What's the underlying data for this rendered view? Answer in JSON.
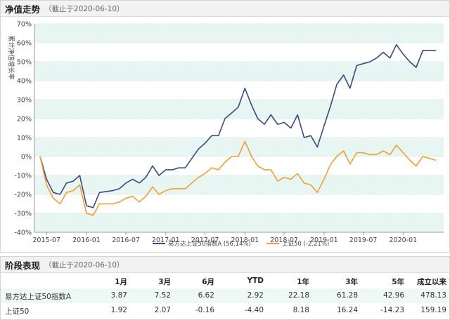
{
  "chart_section": {
    "title": "净值走势",
    "subtitle": "（截止于2020-06-10）"
  },
  "chart_data": {
    "type": "line",
    "ylabel": "累计净值增长率",
    "ylim": [
      -40,
      70
    ],
    "y_ticks": [
      "-40%",
      "-30%",
      "-20%",
      "-10%",
      "0%",
      "10%",
      "20%",
      "30%",
      "40%",
      "50%",
      "60%",
      "70%"
    ],
    "x_ticks": [
      "2015-07",
      "2016-01",
      "2016-07",
      "2017-01",
      "2017-07",
      "2018-01",
      "2018-07",
      "2019-01",
      "2019-07",
      "2020-01"
    ],
    "grid": true,
    "legend_position": "bottom-center",
    "series": [
      {
        "name": "易方达上证50指数A",
        "legend_label": "易方达上证50指数A (56.14%)",
        "color": "#3b4a80",
        "x": [
          "2015-06-01",
          "2015-07-01",
          "2015-08-01",
          "2015-09-01",
          "2015-10-01",
          "2015-11-01",
          "2015-12-01",
          "2016-01-01",
          "2016-02-01",
          "2016-03-01",
          "2016-05-01",
          "2016-06-01",
          "2016-07-01",
          "2016-08-01",
          "2016-09-01",
          "2016-10-01",
          "2016-11-01",
          "2016-12-01",
          "2017-01-01",
          "2017-02-01",
          "2017-03-01",
          "2017-04-01",
          "2017-05-01",
          "2017-06-01",
          "2017-07-01",
          "2017-08-01",
          "2017-09-01",
          "2017-10-01",
          "2017-11-01",
          "2017-12-01",
          "2018-01-01",
          "2018-02-01",
          "2018-03-01",
          "2018-04-01",
          "2018-05-01",
          "2018-06-01",
          "2018-07-01",
          "2018-08-01",
          "2018-09-01",
          "2018-10-01",
          "2018-11-01",
          "2018-12-01",
          "2019-01-01",
          "2019-02-01",
          "2019-03-01",
          "2019-04-01",
          "2019-05-01",
          "2019-06-01",
          "2019-07-01",
          "2019-08-01",
          "2019-09-01",
          "2019-10-01",
          "2019-11-01",
          "2019-12-01",
          "2020-01-01",
          "2020-02-01",
          "2020-03-01",
          "2020-04-01",
          "2020-05-01",
          "2020-06-01"
        ],
        "values": [
          0,
          -12,
          -19,
          -20,
          -14,
          -13,
          -10,
          -26,
          -27,
          -19,
          -18,
          -17,
          -14,
          -12,
          -14,
          -11,
          -5,
          -10,
          -7,
          -7,
          -6,
          -6,
          -1,
          4,
          7,
          11,
          11,
          20,
          23,
          26,
          36,
          27,
          20,
          17,
          22,
          17,
          18,
          15,
          22,
          10,
          11,
          5,
          16,
          27,
          38,
          43,
          36,
          48,
          49,
          50,
          52,
          55,
          52,
          59,
          54,
          50,
          47,
          56,
          56,
          56
        ]
      },
      {
        "name": "上证50",
        "legend_label": "上证50 (-2.21%)",
        "color": "#f0a030",
        "x": [
          "2015-06-01",
          "2015-07-01",
          "2015-08-01",
          "2015-09-01",
          "2015-10-01",
          "2015-11-01",
          "2015-12-01",
          "2016-01-01",
          "2016-02-01",
          "2016-03-01",
          "2016-05-01",
          "2016-06-01",
          "2016-07-01",
          "2016-08-01",
          "2016-09-01",
          "2016-10-01",
          "2016-11-01",
          "2016-12-01",
          "2017-01-01",
          "2017-02-01",
          "2017-03-01",
          "2017-04-01",
          "2017-05-01",
          "2017-06-01",
          "2017-07-01",
          "2017-08-01",
          "2017-09-01",
          "2017-10-01",
          "2017-11-01",
          "2017-12-01",
          "2018-01-01",
          "2018-02-01",
          "2018-03-01",
          "2018-04-01",
          "2018-05-01",
          "2018-06-01",
          "2018-07-01",
          "2018-08-01",
          "2018-09-01",
          "2018-10-01",
          "2018-11-01",
          "2018-12-01",
          "2019-01-01",
          "2019-02-01",
          "2019-03-01",
          "2019-04-01",
          "2019-05-01",
          "2019-06-01",
          "2019-07-01",
          "2019-08-01",
          "2019-09-01",
          "2019-10-01",
          "2019-11-01",
          "2019-12-01",
          "2020-01-01",
          "2020-02-01",
          "2020-03-01",
          "2020-04-01",
          "2020-05-01",
          "2020-06-01"
        ],
        "values": [
          0,
          -15,
          -22,
          -25,
          -19,
          -18,
          -15,
          -30,
          -31,
          -25,
          -25,
          -24,
          -22,
          -21,
          -24,
          -21,
          -16,
          -20,
          -18,
          -17,
          -17,
          -17,
          -14,
          -11,
          -9,
          -6,
          -7,
          -3,
          0,
          0,
          8,
          0,
          -5,
          -7,
          -7,
          -13,
          -11,
          -12,
          -9,
          -14,
          -15,
          -19,
          -12,
          -4,
          0,
          3,
          -4,
          2,
          2,
          1,
          1,
          3,
          1,
          6,
          2,
          -2,
          -5,
          0,
          -1,
          -2
        ]
      }
    ]
  },
  "perf_section": {
    "title": "阶段表现",
    "subtitle": "（截止于2020-06-10）",
    "columns": [
      "1月",
      "3月",
      "6月",
      "YTD",
      "1年",
      "3年",
      "5年",
      "成立以来"
    ],
    "rows": [
      {
        "name": "易方达上证50指数A",
        "values": [
          "3.87",
          "7.52",
          "6.62",
          "2.92",
          "22.18",
          "61.28",
          "42.96",
          "478.13"
        ]
      },
      {
        "name": "上证50",
        "values": [
          "1.92",
          "2.07",
          "-0.16",
          "-4.40",
          "8.18",
          "16.24",
          "-14.23",
          "159.19"
        ]
      }
    ]
  }
}
